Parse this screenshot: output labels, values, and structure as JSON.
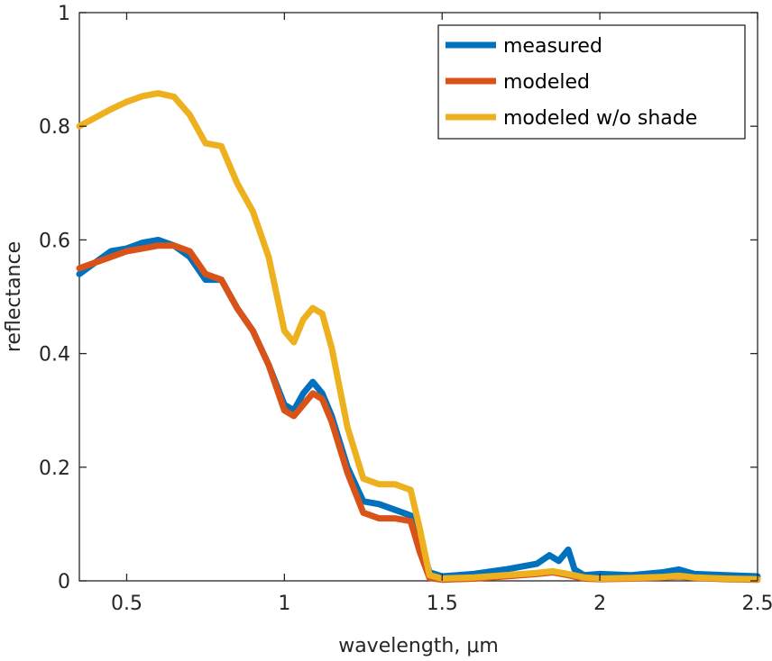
{
  "chart_data": {
    "type": "line",
    "xlabel": "wavelength, μm",
    "ylabel": "reflectance",
    "xlim": [
      0.35,
      2.5
    ],
    "ylim": [
      0,
      1
    ],
    "xticks": [
      0.5,
      1,
      1.5,
      2,
      2.5
    ],
    "xtick_labels": [
      "0.5",
      "1",
      "1.5",
      "2",
      "2.5"
    ],
    "yticks": [
      0,
      0.2,
      0.4,
      0.6,
      0.8,
      1
    ],
    "ytick_labels": [
      "0",
      "0.2",
      "0.4",
      "0.6",
      "0.8",
      "1"
    ],
    "grid": false,
    "legend_position": "top-right",
    "series": [
      {
        "name": "measured",
        "color": "#0072BD",
        "x": [
          0.35,
          0.4,
          0.45,
          0.5,
          0.55,
          0.6,
          0.65,
          0.7,
          0.75,
          0.8,
          0.85,
          0.9,
          0.95,
          1.0,
          1.03,
          1.06,
          1.09,
          1.12,
          1.15,
          1.2,
          1.25,
          1.3,
          1.35,
          1.4,
          1.43,
          1.46,
          1.5,
          1.6,
          1.7,
          1.8,
          1.84,
          1.87,
          1.9,
          1.92,
          1.95,
          2.0,
          2.1,
          2.2,
          2.25,
          2.3,
          2.4,
          2.5
        ],
        "y": [
          0.54,
          0.56,
          0.58,
          0.585,
          0.595,
          0.6,
          0.59,
          0.57,
          0.53,
          0.53,
          0.48,
          0.44,
          0.38,
          0.31,
          0.3,
          0.33,
          0.35,
          0.33,
          0.29,
          0.2,
          0.14,
          0.135,
          0.125,
          0.115,
          0.07,
          0.015,
          0.008,
          0.012,
          0.02,
          0.03,
          0.045,
          0.035,
          0.055,
          0.02,
          0.01,
          0.012,
          0.01,
          0.015,
          0.02,
          0.012,
          0.01,
          0.008
        ]
      },
      {
        "name": "modeled",
        "color": "#D95319",
        "x": [
          0.35,
          0.4,
          0.45,
          0.5,
          0.55,
          0.6,
          0.65,
          0.7,
          0.75,
          0.8,
          0.85,
          0.9,
          0.95,
          1.0,
          1.03,
          1.06,
          1.09,
          1.12,
          1.15,
          1.2,
          1.25,
          1.3,
          1.35,
          1.4,
          1.43,
          1.46,
          1.5,
          1.6,
          1.7,
          1.8,
          1.85,
          1.9,
          1.95,
          2.0,
          2.1,
          2.2,
          2.25,
          2.3,
          2.4,
          2.5
        ],
        "y": [
          0.55,
          0.56,
          0.57,
          0.58,
          0.585,
          0.59,
          0.59,
          0.58,
          0.54,
          0.53,
          0.48,
          0.44,
          0.38,
          0.3,
          0.29,
          0.31,
          0.33,
          0.32,
          0.28,
          0.19,
          0.12,
          0.11,
          0.11,
          0.105,
          0.05,
          0.005,
          0.002,
          0.004,
          0.008,
          0.012,
          0.015,
          0.01,
          0.004,
          0.003,
          0.004,
          0.006,
          0.008,
          0.005,
          0.003,
          0.002
        ]
      },
      {
        "name": "modeled w/o shade",
        "color": "#EDB120",
        "x": [
          0.35,
          0.4,
          0.45,
          0.5,
          0.55,
          0.6,
          0.65,
          0.7,
          0.75,
          0.8,
          0.85,
          0.9,
          0.95,
          1.0,
          1.03,
          1.06,
          1.09,
          1.12,
          1.15,
          1.2,
          1.25,
          1.3,
          1.35,
          1.4,
          1.43,
          1.46,
          1.5,
          1.6,
          1.7,
          1.8,
          1.85,
          1.9,
          1.95,
          2.0,
          2.1,
          2.2,
          2.25,
          2.3,
          2.4,
          2.5
        ],
        "y": [
          0.8,
          0.815,
          0.83,
          0.843,
          0.853,
          0.858,
          0.852,
          0.82,
          0.77,
          0.765,
          0.7,
          0.65,
          0.57,
          0.44,
          0.42,
          0.46,
          0.48,
          0.47,
          0.41,
          0.27,
          0.18,
          0.17,
          0.17,
          0.16,
          0.09,
          0.01,
          0.004,
          0.006,
          0.01,
          0.014,
          0.017,
          0.012,
          0.006,
          0.004,
          0.005,
          0.007,
          0.009,
          0.006,
          0.004,
          0.003
        ]
      }
    ]
  }
}
